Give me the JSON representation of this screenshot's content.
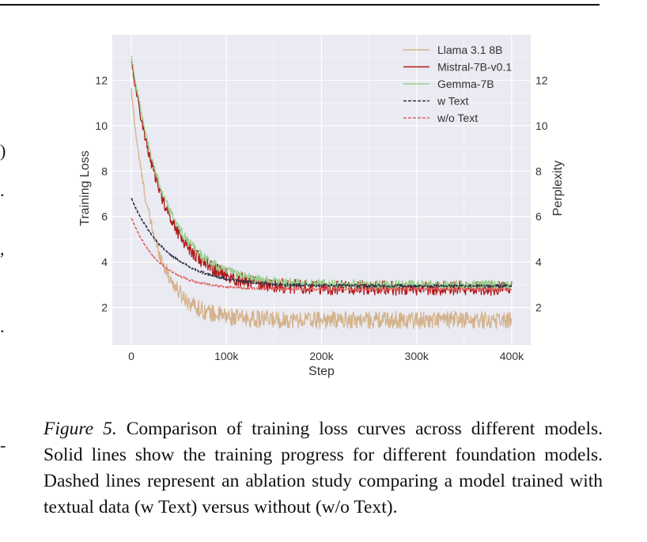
{
  "chart_data": {
    "type": "line",
    "xlabel": "Step",
    "ylabel": "Training Loss",
    "ylabel_right": "Perplexity",
    "xlim": [
      -20000,
      420000
    ],
    "ylim": [
      0.35,
      14.0
    ],
    "xticks": [
      0,
      100000,
      200000,
      300000,
      400000
    ],
    "xtick_labels": [
      "0",
      "100k",
      "200k",
      "300k",
      "400k"
    ],
    "yticks": [
      2,
      4,
      6,
      8,
      10,
      12
    ],
    "ytick_labels": [
      "2",
      "4",
      "6",
      "8",
      "10",
      "12"
    ],
    "yticks_right": [
      "2",
      "4",
      "6",
      "8",
      "10",
      "12"
    ],
    "grid": true,
    "legend_position": "top-right",
    "series": [
      {
        "name": "Llama 3.1 8B",
        "style": "solid",
        "color": "#d4b28a",
        "start": 11.5,
        "end": 1.45,
        "tau": 24000,
        "noise": 0.38,
        "x": [
          0,
          25000,
          50000,
          75000,
          100000,
          150000,
          200000,
          300000,
          400000
        ],
        "y": [
          11.5,
          5.3,
          3.0,
          2.0,
          1.75,
          1.55,
          1.5,
          1.45,
          1.45
        ]
      },
      {
        "name": "Mistral-7B-v0.1",
        "style": "solid",
        "color": "#b01c1c",
        "start": 12.9,
        "end": 2.85,
        "tau": 35000,
        "noise": 0.32,
        "x": [
          0,
          25000,
          50000,
          75000,
          100000,
          150000,
          200000,
          300000,
          400000
        ],
        "y": [
          12.9,
          7.9,
          5.3,
          4.2,
          3.5,
          3.0,
          2.9,
          2.85,
          2.8
        ]
      },
      {
        "name": "Gemma-7B",
        "style": "solid",
        "color": "#98d08c",
        "start": 13.1,
        "end": 3.0,
        "tau": 36000,
        "noise": 0.2,
        "x": [
          0,
          25000,
          50000,
          75000,
          100000,
          150000,
          200000,
          300000,
          400000
        ],
        "y": [
          13.1,
          8.3,
          5.6,
          4.4,
          3.7,
          3.2,
          3.05,
          3.0,
          3.0
        ]
      },
      {
        "name": "w Text",
        "style": "dashed",
        "color": "#2b2f45",
        "start": 6.8,
        "end": 2.95,
        "tau": 40000,
        "noise": 0.06,
        "x": [
          0,
          50000,
          100000,
          150000,
          200000,
          300000,
          400000
        ],
        "y": [
          6.8,
          4.4,
          3.4,
          3.1,
          3.0,
          2.95,
          2.95
        ]
      },
      {
        "name": "w/o Text",
        "style": "dashed",
        "color": "#e06262",
        "start": 5.95,
        "end": 2.8,
        "tau": 30000,
        "noise": 0.05,
        "x": [
          0,
          50000,
          100000,
          150000,
          200000,
          300000,
          400000
        ],
        "y": [
          5.95,
          3.5,
          3.0,
          2.85,
          2.8,
          2.8,
          2.8
        ]
      }
    ]
  },
  "caption": {
    "label": "Figure 5.",
    "text": "Comparison of training loss curves across different models. Solid lines show the training progress for different foundation models. Dashed lines represent an ablation study comparing a model trained with textual data (w Text) versus without (w/o Text)."
  },
  "margin_glyphs": [
    ")",
    ".",
    ",",
    ".",
    "-"
  ]
}
